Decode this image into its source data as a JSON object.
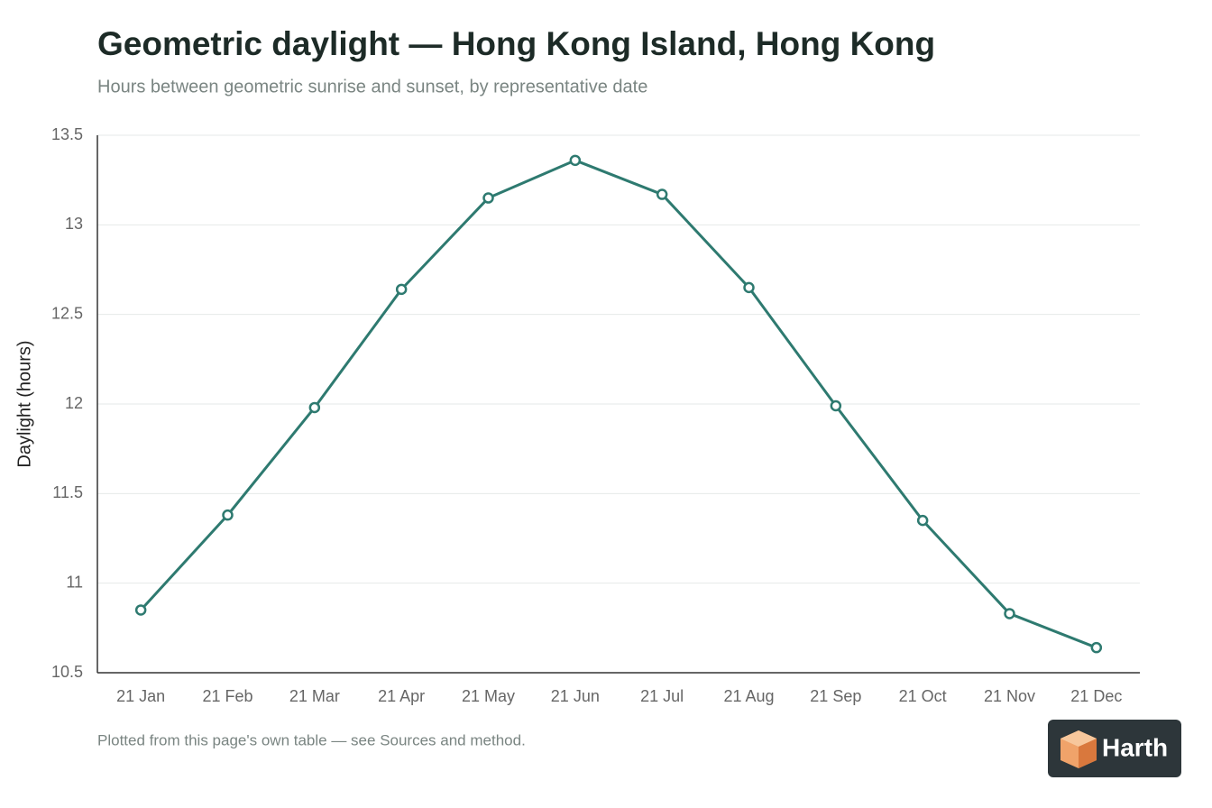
{
  "chart_data": {
    "type": "line",
    "title": "Geometric daylight — Hong Kong Island, Hong Kong",
    "subtitle": "Hours between geometric sunrise and sunset, by representative date",
    "y_label": "Daylight (hours)",
    "categories": [
      "21 Jan",
      "21 Feb",
      "21 Mar",
      "21 Apr",
      "21 May",
      "21 Jun",
      "21 Jul",
      "21 Aug",
      "21 Sep",
      "21 Oct",
      "21 Nov",
      "21 Dec"
    ],
    "values": [
      10.85,
      11.38,
      11.98,
      12.64,
      13.15,
      13.36,
      13.17,
      12.65,
      11.99,
      11.35,
      10.83,
      10.64
    ],
    "color": "#2e7a70",
    "ylim": [
      10.5,
      13.5
    ],
    "yticks": [
      10.5,
      11,
      11.5,
      12,
      12.5,
      13,
      13.5
    ],
    "grid": true,
    "footnote": "Plotted from this page's own table — see Sources and method."
  },
  "badge": {
    "text": "Harth"
  }
}
